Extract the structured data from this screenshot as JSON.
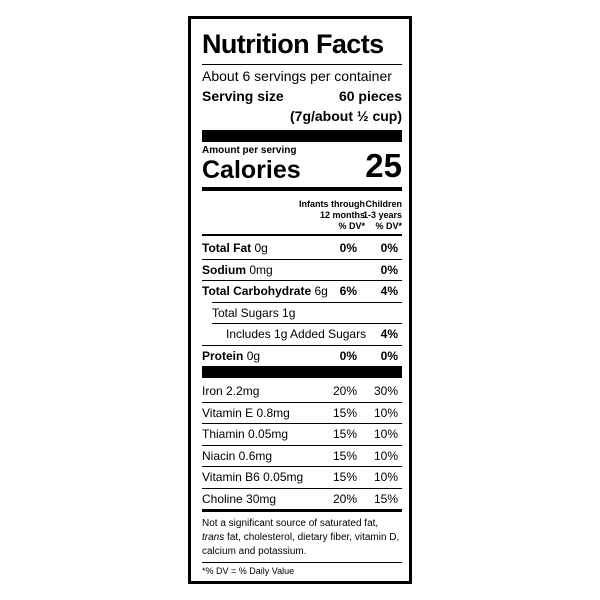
{
  "label": {
    "title": "Nutrition Facts",
    "servings": "About 6 servings per container",
    "serving_size_label": "Serving size",
    "serving_size_pieces": "60 pieces",
    "serving_size_weight": "(7g/about ½ cup)",
    "amount_per_serving": "Amount per serving",
    "calories_label": "Calories",
    "calories": 25,
    "columns": [
      {
        "line1": "Infants through",
        "line2": "12 months",
        "line3": "% DV*"
      },
      {
        "line1": "Children",
        "line2": "1-3 years",
        "line3": "% DV*"
      }
    ],
    "nutrients": [
      {
        "name": "Total Fat",
        "amount": "0g",
        "infants": "0%",
        "children": "0%"
      },
      {
        "name": "Sodium",
        "amount": "0mg",
        "children": "0%"
      },
      {
        "name": "Total Carbohydrate",
        "amount": "6g",
        "infants": "6%",
        "children": "4%"
      },
      {
        "name": "Total Sugars 1g"
      },
      {
        "name": "Includes 1g Added Sugars",
        "children": "4%"
      },
      {
        "name": "Protein",
        "amount": "0g",
        "infants": "0%",
        "children": "0%"
      }
    ],
    "vitamins": [
      {
        "name": "Iron 2.2mg",
        "infants": "20%",
        "children": "30%"
      },
      {
        "name": "Vitamin E 0.8mg",
        "infants": "15%",
        "children": "10%"
      },
      {
        "name": "Thiamin 0.05mg",
        "infants": "15%",
        "children": "10%"
      },
      {
        "name": "Niacin 0.6mg",
        "infants": "15%",
        "children": "10%"
      },
      {
        "name": "Vitamin B6 0.05mg",
        "infants": "15%",
        "children": "10%"
      },
      {
        "name": "Choline 30mg",
        "infants": "20%",
        "children": "15%"
      }
    ],
    "footnote": {
      "before": "Not a significant source of saturated fat, ",
      "italic": "trans",
      "after": " fat, cholesterol, dietary fiber, vitamin D, calcium and potassium."
    },
    "dv_note": "*% DV = % Daily Value"
  }
}
